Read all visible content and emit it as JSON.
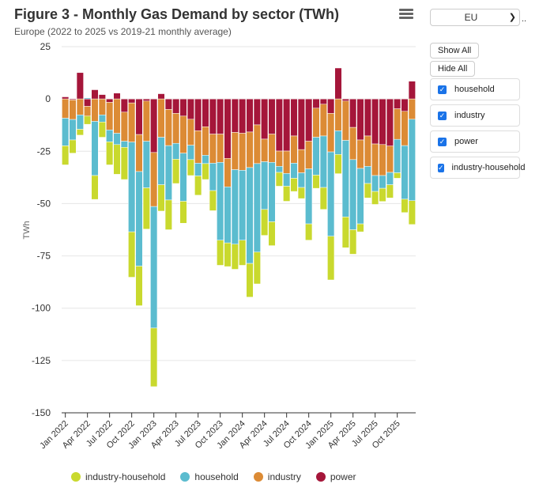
{
  "header": {
    "title": "Figure 3 - Monthly Gas Demand by sector (TWh)",
    "subtitle": "Europe (2022 to 2025 vs 2019-21 monthly average)",
    "menu_icon": "hamburger-menu-icon"
  },
  "controls": {
    "region_select": "EU",
    "ellipsis": "..",
    "show_all": "Show All",
    "hide_all": "Hide All",
    "checkboxes": [
      {
        "label": "household",
        "checked": true
      },
      {
        "label": "industry",
        "checked": true
      },
      {
        "label": "power",
        "checked": true
      },
      {
        "label": "industry-household",
        "checked": true
      }
    ]
  },
  "chart_data": {
    "type": "bar",
    "stacked": true,
    "title": "Figure 3 - Monthly Gas Demand by sector (TWh)",
    "subtitle": "Europe (2022 to 2025 vs 2019-21 monthly average)",
    "xlabel": "",
    "ylabel": "TWh",
    "ylim": [
      -150,
      25
    ],
    "yticks": [
      25,
      0,
      -25,
      -50,
      -75,
      -100,
      -125,
      -150
    ],
    "grid": true,
    "legend_position": "bottom",
    "xtick_labels": [
      "Jan 2022",
      "Apr 2022",
      "Jul 2022",
      "Oct 2022",
      "Jan 2023",
      "Apr 2023",
      "Jul 2023",
      "Oct 2023",
      "Jan 2024",
      "Apr 2024",
      "Jul 2024",
      "Oct 2024",
      "Jan 2025",
      "Apr 2025",
      "Jul 2025",
      "Oct 2025"
    ],
    "categories": [
      "Jan 2022",
      "Feb 2022",
      "Mar 2022",
      "Apr 2022",
      "May 2022",
      "Jun 2022",
      "Jul 2022",
      "Aug 2022",
      "Sep 2022",
      "Oct 2022",
      "Nov 2022",
      "Dec 2022",
      "Jan 2023",
      "Feb 2023",
      "Mar 2023",
      "Apr 2023",
      "May 2023",
      "Jun 2023",
      "Jul 2023",
      "Aug 2023",
      "Sep 2023",
      "Oct 2023",
      "Nov 2023",
      "Dec 2023",
      "Jan 2024",
      "Feb 2024",
      "Mar 2024",
      "Apr 2024",
      "May 2024",
      "Jun 2024",
      "Jul 2024",
      "Aug 2024",
      "Sep 2024",
      "Oct 2024",
      "Nov 2024",
      "Dec 2024",
      "Jan 2025",
      "Feb 2025",
      "Mar 2025",
      "Apr 2025",
      "May 2025",
      "Jun 2025",
      "Jul 2025",
      "Aug 2025",
      "Sep 2025",
      "Oct 2025",
      "Nov 2025",
      "Dec 2025"
    ],
    "series": [
      {
        "name": "power",
        "color": "#a5163a",
        "values": [
          1.0,
          -0.5,
          12.6,
          -3.5,
          4.4,
          2.1,
          -1.6,
          2.8,
          -6.3,
          -1.9,
          -17.0,
          -1.0,
          -25.6,
          2.5,
          -5.0,
          -6.9,
          -8.2,
          -9.7,
          -15.2,
          -13.3,
          -16.8,
          -16.8,
          -28.4,
          -16.0,
          -16.4,
          -15.8,
          -12.4,
          -19.2,
          -16.8,
          -24.9,
          -24.9,
          -17.7,
          -24.2,
          -20.2,
          -4.4,
          -2.5,
          -6.9,
          14.8,
          -1.0,
          -13.6,
          -19.6,
          -17.7,
          -21.5,
          -21.8,
          -22.5,
          -4.7,
          -5.9,
          8.5
        ]
      },
      {
        "name": "industry",
        "color": "#dc8b35",
        "values": [
          -9.2,
          -9.3,
          -7.6,
          -4.7,
          -10.7,
          -7.6,
          -13.2,
          -16.4,
          -13.9,
          -18.7,
          -17.7,
          -19.2,
          -25.8,
          -18.3,
          -17.3,
          -14.3,
          -17.7,
          -12.4,
          -15.5,
          -13.6,
          -13.9,
          -13.5,
          -13.6,
          -17.8,
          -17.7,
          -17.0,
          -18.5,
          -10.8,
          -13.5,
          -7.3,
          -10.7,
          -13.0,
          -11.1,
          -13.2,
          -13.9,
          -15.2,
          -18.4,
          -15.2,
          -18.8,
          -15.4,
          -13.6,
          -14.5,
          -15.1,
          -14.8,
          -12.6,
          -14.6,
          -16.4,
          -9.7
        ]
      },
      {
        "name": "household",
        "color": "#5bbccf",
        "values": [
          -13.2,
          -9.8,
          -6.9,
          0.5,
          -25.9,
          -3.4,
          -5.7,
          -5.4,
          -2.9,
          -42.9,
          -45.2,
          -22.3,
          -58.1,
          -22.7,
          -26.0,
          -7.6,
          -23.0,
          -6.9,
          -6.1,
          -4.0,
          -13.1,
          -37.2,
          -26.8,
          -35.6,
          -33.4,
          -45.8,
          -42.3,
          -22.8,
          -28.4,
          -2.9,
          -6.1,
          -7.2,
          -7.0,
          -26.3,
          -18.1,
          -24.6,
          -40.3,
          -11.3,
          -36.6,
          -33.5,
          -26.5,
          -8.2,
          -7.6,
          -6.1,
          -5.9,
          -16.0,
          -25.6,
          -38.9
        ]
      },
      {
        "name": "industry-household",
        "color": "#c9d92e",
        "values": [
          -9.1,
          -6.3,
          -2.8,
          -3.9,
          -11.4,
          -7.3,
          -11.0,
          -14.2,
          -15.4,
          -21.7,
          -18.9,
          -19.7,
          -28.0,
          -12.6,
          -14.2,
          -11.6,
          -10.5,
          -7.6,
          -9.2,
          -7.6,
          -9.6,
          -12.0,
          -11.3,
          -12.0,
          -12.0,
          -16.1,
          -15.2,
          -12.4,
          -11.4,
          -6.6,
          -7.2,
          -6.3,
          -5.3,
          -7.8,
          -6.3,
          -10.5,
          -20.9,
          -9.2,
          -14.7,
          -11.7,
          -3.8,
          -6.9,
          -6.2,
          -6.3,
          -6.3,
          -2.6,
          -6.4,
          -11.4
        ]
      }
    ]
  }
}
